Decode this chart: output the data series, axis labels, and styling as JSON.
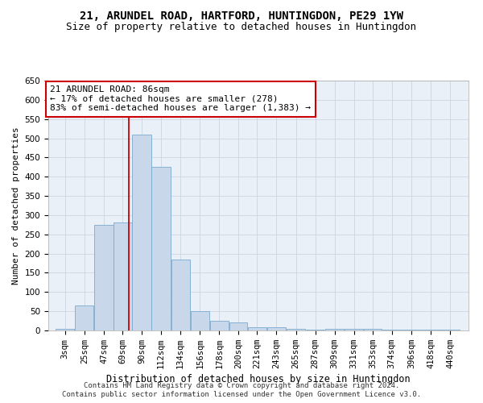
{
  "title1": "21, ARUNDEL ROAD, HARTFORD, HUNTINGDON, PE29 1YW",
  "title2": "Size of property relative to detached houses in Huntingdon",
  "xlabel": "Distribution of detached houses by size in Huntingdon",
  "ylabel": "Number of detached properties",
  "footnote1": "Contains HM Land Registry data © Crown copyright and database right 2024.",
  "footnote2": "Contains public sector information licensed under the Open Government Licence v3.0.",
  "annotation_line1": "21 ARUNDEL ROAD: 86sqm",
  "annotation_line2": "← 17% of detached houses are smaller (278)",
  "annotation_line3": "83% of semi-detached houses are larger (1,383) →",
  "bar_labels": [
    "3sqm",
    "25sqm",
    "47sqm",
    "69sqm",
    "90sqm",
    "112sqm",
    "134sqm",
    "156sqm",
    "178sqm",
    "200sqm",
    "221sqm",
    "243sqm",
    "265sqm",
    "287sqm",
    "309sqm",
    "331sqm",
    "353sqm",
    "374sqm",
    "396sqm",
    "418sqm",
    "440sqm"
  ],
  "bar_values": [
    5,
    65,
    275,
    280,
    510,
    425,
    185,
    50,
    25,
    20,
    8,
    8,
    5,
    2,
    5,
    5,
    5,
    2,
    2,
    2,
    3
  ],
  "bar_edges": [
    3,
    25,
    47,
    69,
    90,
    112,
    134,
    156,
    178,
    200,
    221,
    243,
    265,
    287,
    309,
    331,
    353,
    374,
    396,
    418,
    440,
    462
  ],
  "bar_color": "#c8d8ea",
  "bar_edge_color": "#7aaad0",
  "vline_color": "#cc0000",
  "vline_x": 86,
  "ylim": [
    0,
    650
  ],
  "ytick_interval": 50,
  "grid_color": "#c8d0dc",
  "bg_color": "#eaf0f8",
  "box_color": "#cc0000",
  "title_fontsize": 10,
  "subtitle_fontsize": 9,
  "annotation_fontsize": 8,
  "axis_label_fontsize": 8.5,
  "ylabel_fontsize": 8,
  "tick_fontsize": 7.5,
  "footnote_fontsize": 6.5
}
